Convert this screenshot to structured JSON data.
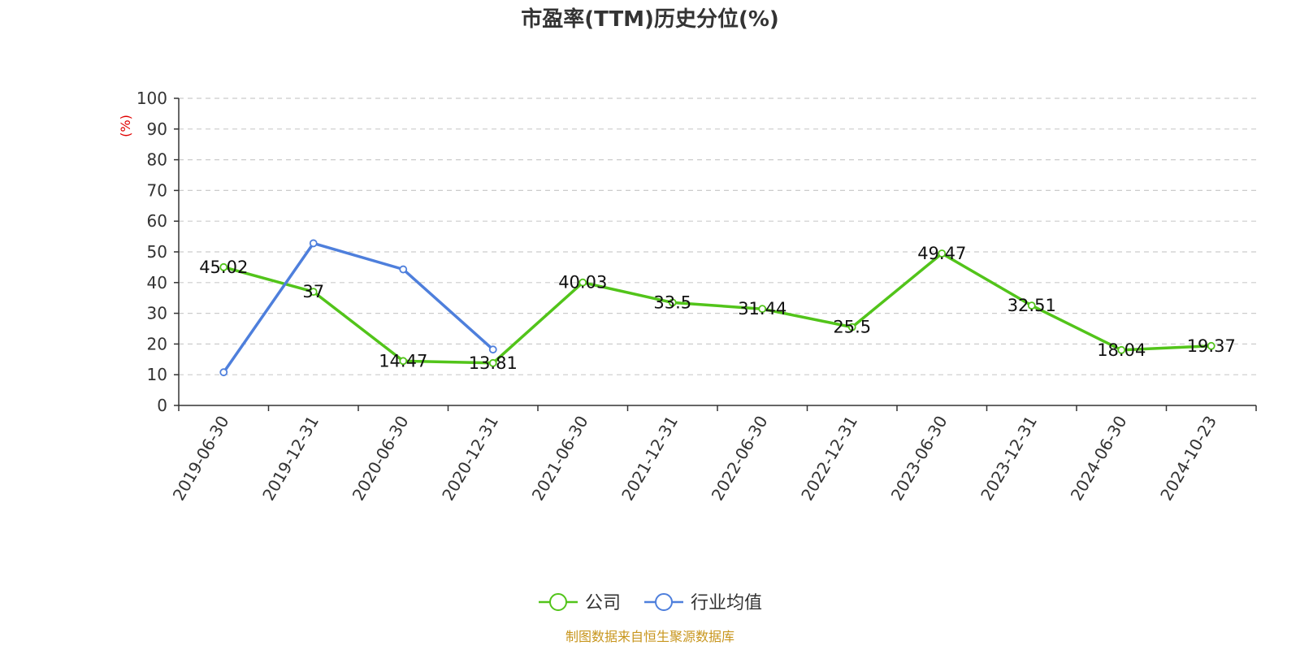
{
  "chart_data": {
    "type": "line",
    "title": "市盈率(TTM)历史分位(%)",
    "ylabel": "(%)",
    "ylim": [
      0,
      100
    ],
    "yticks": [
      0,
      10,
      20,
      30,
      40,
      50,
      60,
      70,
      80,
      90,
      100
    ],
    "categories": [
      "2019-06-30",
      "2019-12-31",
      "2020-06-30",
      "2020-12-31",
      "2021-06-30",
      "2021-12-31",
      "2022-06-30",
      "2022-12-31",
      "2023-06-30",
      "2023-12-31",
      "2024-06-30",
      "2024-10-23"
    ],
    "grid": true,
    "legend_position": "bottom",
    "series": [
      {
        "name": "公司",
        "color": "#52c41a",
        "values": [
          45.02,
          37,
          14.47,
          13.81,
          40.03,
          33.5,
          31.44,
          25.5,
          49.47,
          32.51,
          18.04,
          19.37
        ],
        "labels": [
          "45.02",
          "37",
          "14.47",
          "13.81",
          "40.03",
          "33.5",
          "31.44",
          "25.5",
          "49.47",
          "32.51",
          "18.04",
          "19.37"
        ]
      },
      {
        "name": "行业均值",
        "color": "#4e7fdc",
        "values": [
          10.8,
          52.8,
          44.3,
          18.2,
          null,
          null,
          null,
          null,
          null,
          null,
          null,
          null
        ]
      }
    ],
    "source": "制图数据来自恒生聚源数据库",
    "colors": {
      "axis": "#333333",
      "grid": "#cccccc",
      "unit_label": "#e00000",
      "source": "#c8961e"
    }
  }
}
